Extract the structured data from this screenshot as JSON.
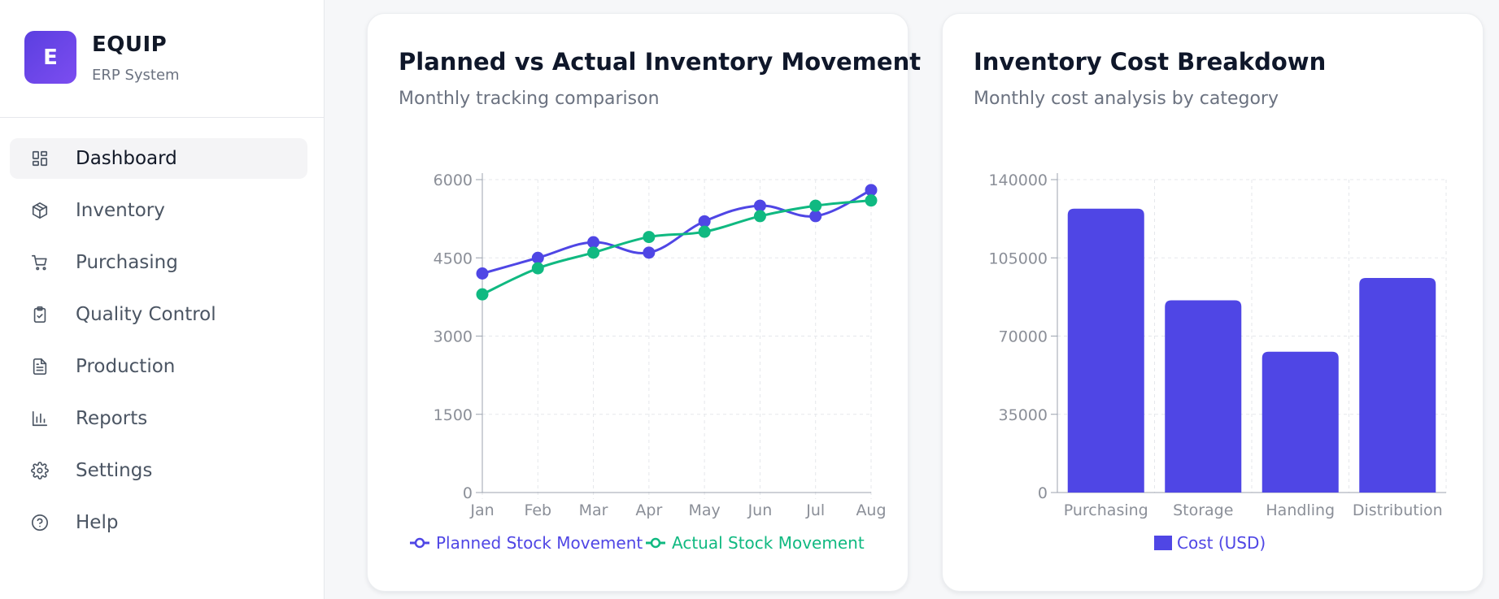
{
  "brand": {
    "logo_letter": "E",
    "name": "EQUIP",
    "subtitle": "ERP System"
  },
  "sidebar": {
    "items": [
      {
        "label": "Dashboard",
        "icon": "dashboard-icon",
        "active": true
      },
      {
        "label": "Inventory",
        "icon": "box-icon",
        "active": false
      },
      {
        "label": "Purchasing",
        "icon": "cart-icon",
        "active": false
      },
      {
        "label": "Quality Control",
        "icon": "clipboard-check-icon",
        "active": false
      },
      {
        "label": "Production",
        "icon": "document-icon",
        "active": false
      },
      {
        "label": "Reports",
        "icon": "bar-chart-icon",
        "active": false
      },
      {
        "label": "Settings",
        "icon": "gear-icon",
        "active": false
      },
      {
        "label": "Help",
        "icon": "help-icon",
        "active": false
      }
    ]
  },
  "colors": {
    "accent": "#5b3fe0",
    "planned": "#4f46e5",
    "actual": "#10b981",
    "bar": "#4f46e5"
  },
  "cards": [
    {
      "title": "Planned vs Actual Inventory Movement",
      "subtitle": "Monthly tracking comparison"
    },
    {
      "title": "Inventory Cost Breakdown",
      "subtitle": "Monthly cost analysis by category"
    }
  ],
  "chart_data": [
    {
      "type": "line",
      "title": "Planned vs Actual Inventory Movement",
      "subtitle": "Monthly tracking comparison",
      "categories": [
        "Jan",
        "Feb",
        "Mar",
        "Apr",
        "May",
        "Jun",
        "Jul",
        "Aug"
      ],
      "series": [
        {
          "name": "Planned Stock Movement",
          "values": [
            4200,
            4500,
            4800,
            4600,
            5200,
            5500,
            5300,
            5800
          ]
        },
        {
          "name": "Actual Stock Movement",
          "values": [
            3800,
            4300,
            4600,
            4900,
            5000,
            5300,
            5500,
            5600
          ]
        }
      ],
      "ylim": [
        0,
        6000
      ],
      "yticks": [
        0,
        1500,
        3000,
        4500,
        6000
      ],
      "grid": true,
      "legend": "bottom"
    },
    {
      "type": "bar",
      "title": "Inventory Cost Breakdown",
      "subtitle": "Monthly cost analysis by category",
      "categories": [
        "Purchasing",
        "Storage",
        "Handling",
        "Distribution"
      ],
      "series": [
        {
          "name": "Cost (USD)",
          "values": [
            127000,
            86000,
            63000,
            96000
          ]
        }
      ],
      "ylim": [
        0,
        140000
      ],
      "yticks": [
        0,
        35000,
        70000,
        105000,
        140000
      ],
      "grid": true,
      "legend": "bottom"
    }
  ]
}
